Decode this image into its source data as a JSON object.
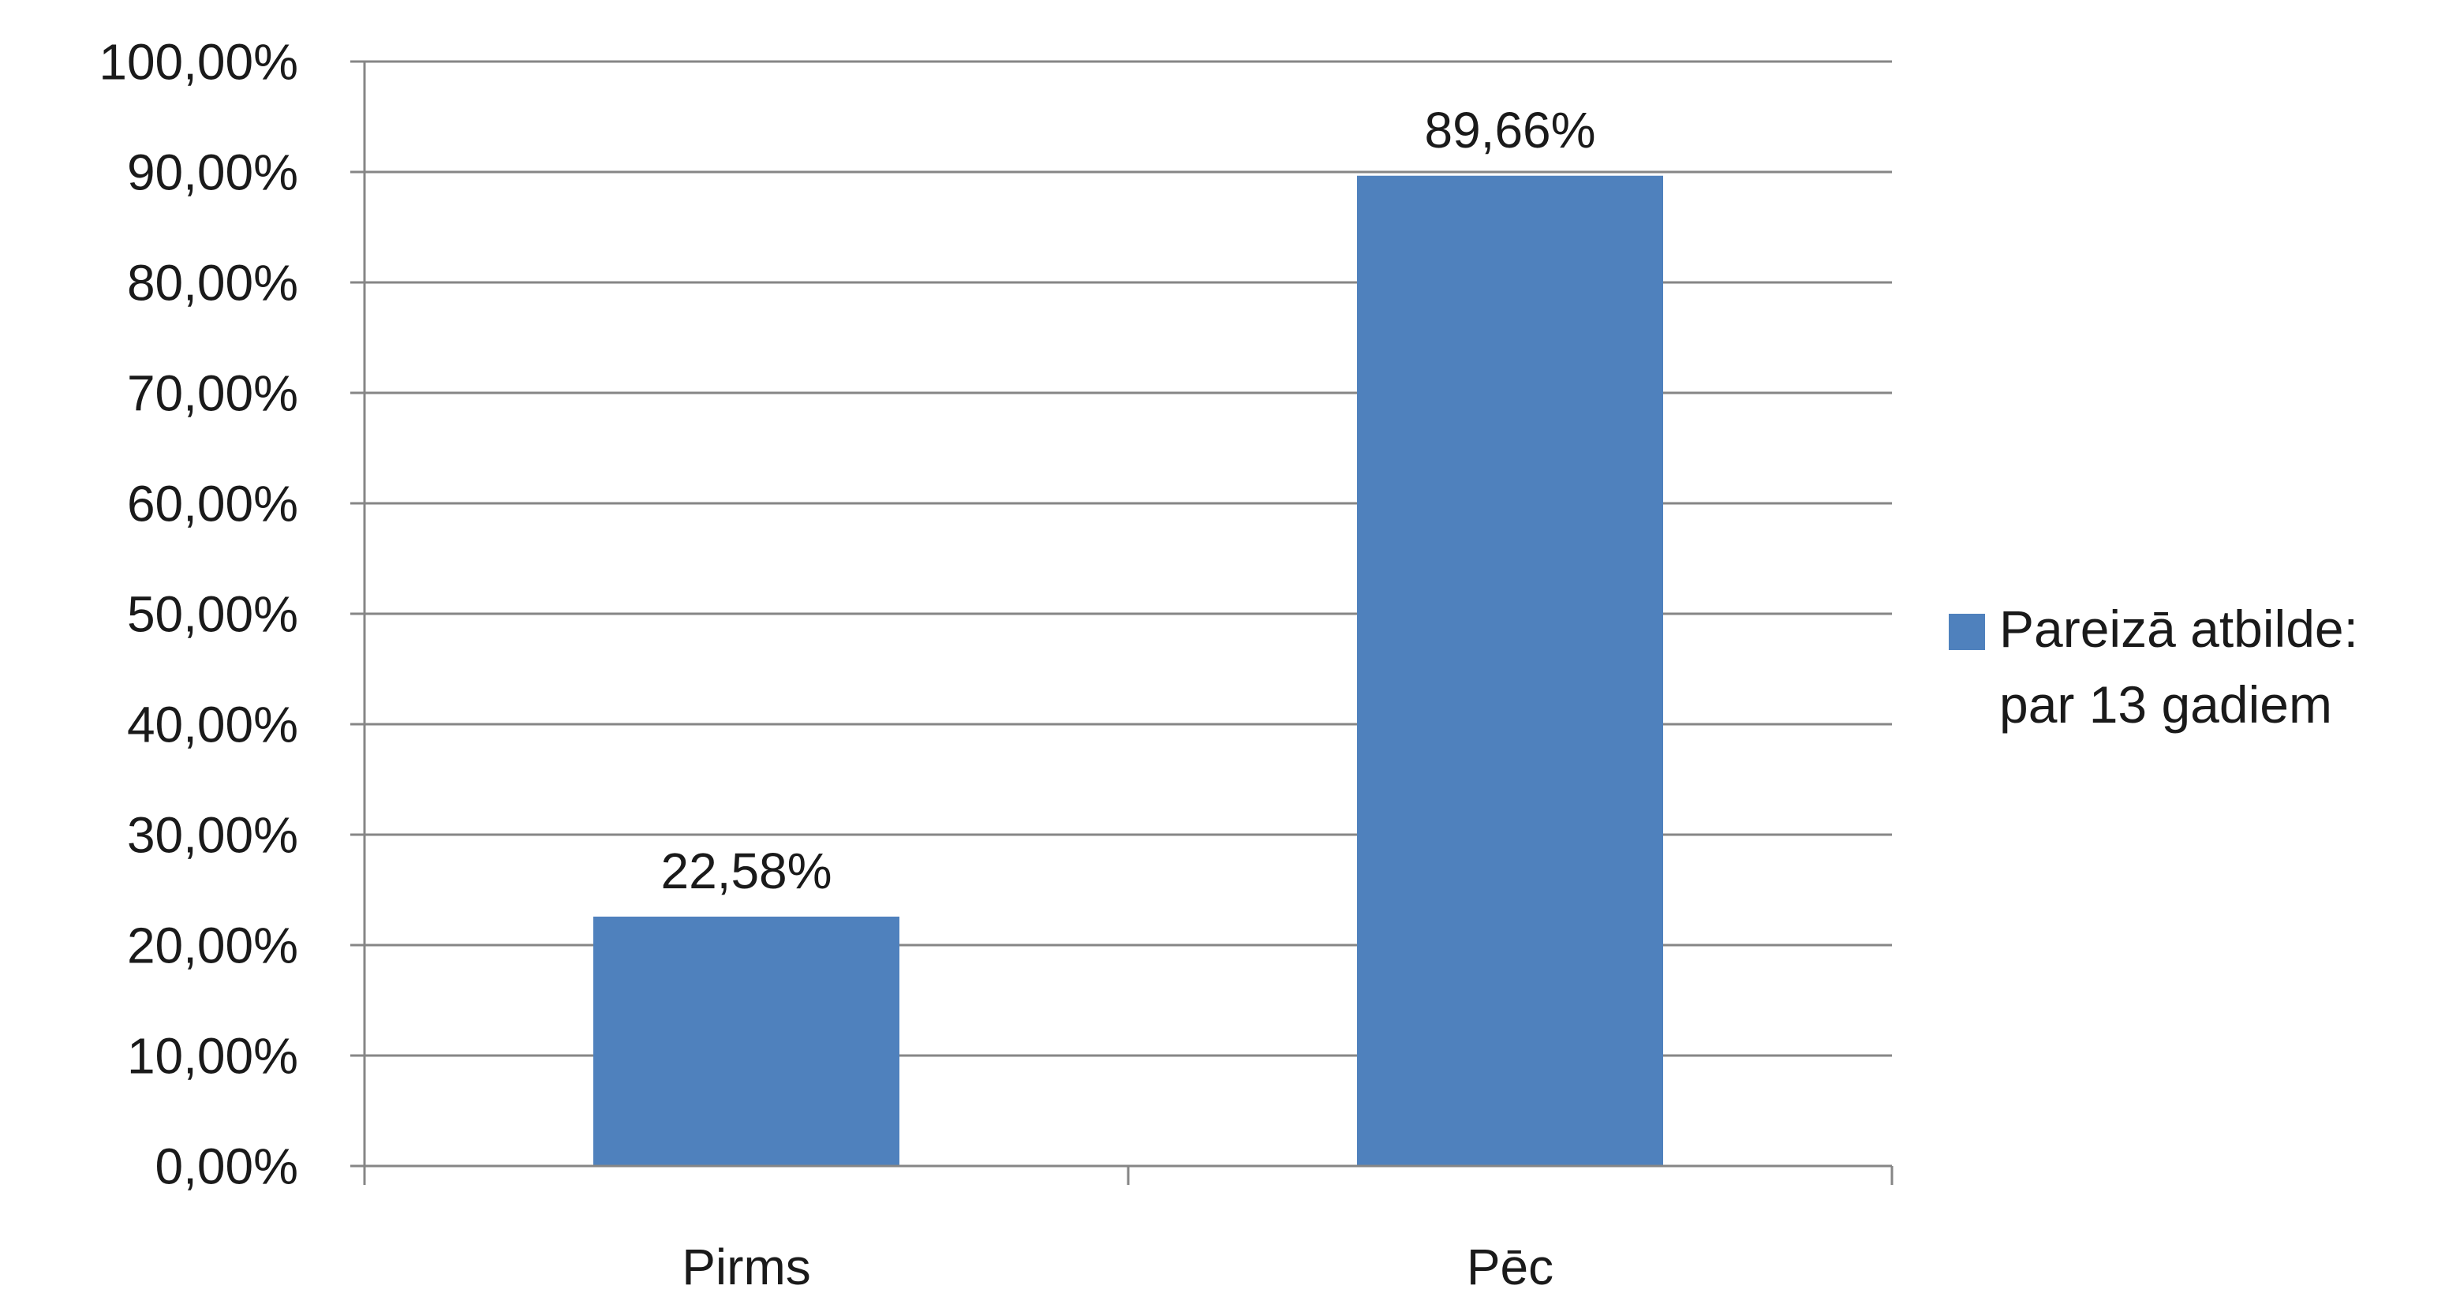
{
  "chart_data": {
    "type": "bar",
    "categories": [
      "Pirms",
      "Pēc"
    ],
    "series": [
      {
        "name": "Pareizā atbilde: par 13 gadiem",
        "name_lines": [
          "Pareizā atbilde:",
          "par 13 gadiem"
        ],
        "values": [
          22.58,
          89.66
        ],
        "value_labels": [
          "22,58%",
          "89,66%"
        ],
        "color": "#4F81BD"
      }
    ],
    "ylim": [
      0,
      100
    ],
    "yticks": [
      0,
      10,
      20,
      30,
      40,
      50,
      60,
      70,
      80,
      90,
      100
    ],
    "ytick_labels": [
      "0,00%",
      "10,00%",
      "20,00%",
      "30,00%",
      "40,00%",
      "50,00%",
      "60,00%",
      "70,00%",
      "80,00%",
      "90,00%",
      "100,00%"
    ],
    "grid": true,
    "legend_position": "right",
    "gridline_color": "#868686",
    "title": "",
    "xlabel": "",
    "ylabel": ""
  }
}
